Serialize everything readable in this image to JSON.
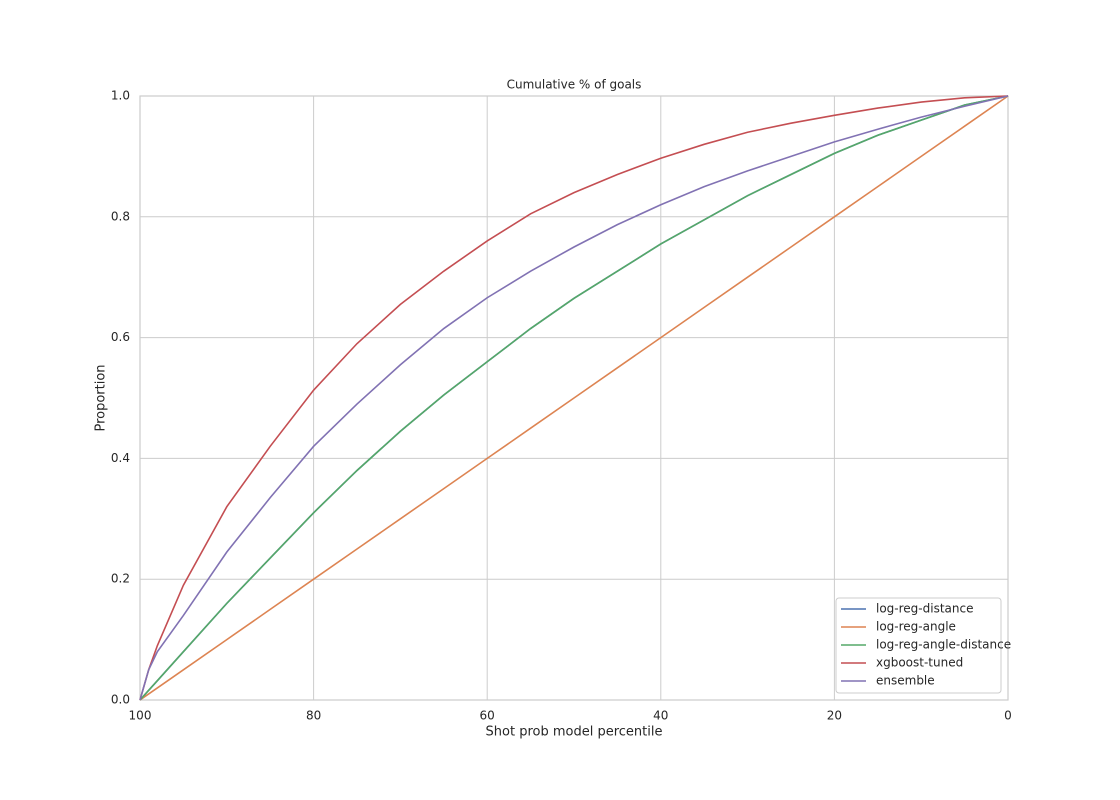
{
  "chart_data": {
    "type": "line",
    "title": "Cumulative % of goals",
    "x_label": "Shot prob model percentile",
    "y_label": "Proportion",
    "x": [
      100,
      99,
      98,
      95,
      90,
      85,
      80,
      75,
      70,
      65,
      60,
      55,
      50,
      45,
      40,
      35,
      30,
      25,
      20,
      15,
      10,
      5,
      0
    ],
    "series": [
      {
        "name": "log-reg-distance",
        "color": "#4c72b0",
        "values": [
          0,
          0.016,
          0.032,
          0.08,
          0.16,
          0.235,
          0.31,
          0.38,
          0.445,
          0.505,
          0.56,
          0.615,
          0.665,
          0.71,
          0.755,
          0.795,
          0.835,
          0.87,
          0.905,
          0.935,
          0.96,
          0.985,
          1.0
        ]
      },
      {
        "name": "log-reg-angle",
        "color": "#dd8452",
        "values": [
          0,
          0.01,
          0.02,
          0.05,
          0.1,
          0.15,
          0.2,
          0.25,
          0.3,
          0.35,
          0.4,
          0.45,
          0.5,
          0.55,
          0.6,
          0.65,
          0.7,
          0.75,
          0.8,
          0.85,
          0.9,
          0.95,
          1.0
        ]
      },
      {
        "name": "log-reg-angle-distance",
        "color": "#55a868",
        "values": [
          0,
          0.016,
          0.032,
          0.08,
          0.16,
          0.235,
          0.31,
          0.38,
          0.445,
          0.505,
          0.56,
          0.615,
          0.665,
          0.71,
          0.755,
          0.795,
          0.835,
          0.87,
          0.905,
          0.935,
          0.96,
          0.985,
          1.0
        ]
      },
      {
        "name": "xgboost-tuned",
        "color": "#c44e52",
        "values": [
          0,
          0.05,
          0.09,
          0.19,
          0.32,
          0.42,
          0.513,
          0.59,
          0.655,
          0.71,
          0.76,
          0.805,
          0.84,
          0.87,
          0.897,
          0.92,
          0.94,
          0.955,
          0.968,
          0.98,
          0.99,
          0.997,
          1.0
        ]
      },
      {
        "name": "ensemble",
        "color": "#8172b3",
        "values": [
          0,
          0.05,
          0.08,
          0.14,
          0.245,
          0.335,
          0.42,
          0.49,
          0.555,
          0.615,
          0.666,
          0.71,
          0.75,
          0.787,
          0.82,
          0.85,
          0.876,
          0.9,
          0.924,
          0.945,
          0.965,
          0.983,
          1.0
        ]
      }
    ],
    "xlim": [
      100,
      0
    ],
    "xticks": [
      100,
      80,
      60,
      40,
      20,
      0
    ],
    "ylim": [
      0,
      1
    ],
    "yticks": [
      {
        "value": 0,
        "label": "0.0"
      },
      0.2,
      0.4,
      0.6,
      0.8,
      {
        "value": 1,
        "label": "1.0"
      }
    ],
    "grid": true,
    "legend_position": "lower right"
  }
}
